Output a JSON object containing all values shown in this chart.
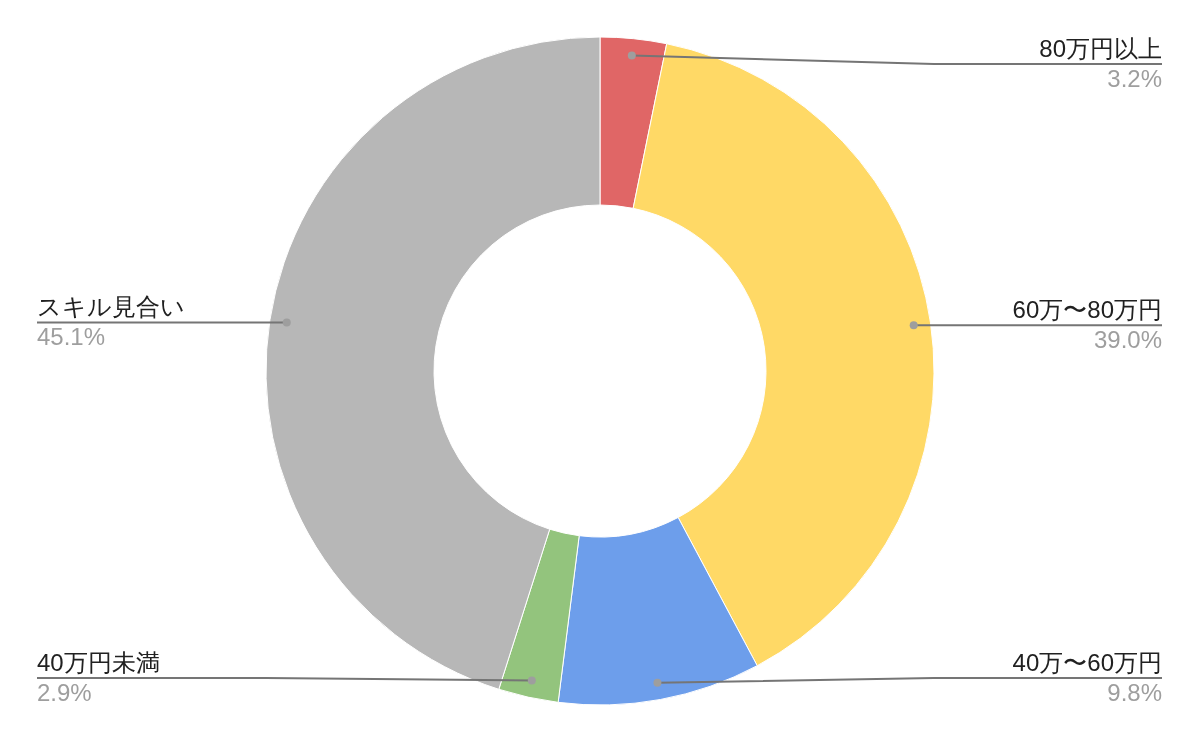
{
  "chart_data": {
    "type": "donut",
    "categories": [
      "80万円以上",
      "60万〜80万円",
      "40万〜60万円",
      "40万円未満",
      "スキル見合い"
    ],
    "values": [
      3.2,
      39.0,
      9.8,
      2.9,
      45.1
    ],
    "colors": [
      "#e06666",
      "#ffd966",
      "#6d9eeb",
      "#93c47d",
      "#b7b7b7"
    ],
    "value_labels": [
      "3.2%",
      "39.0%",
      "9.8%",
      "2.9%",
      "45.1%"
    ]
  }
}
